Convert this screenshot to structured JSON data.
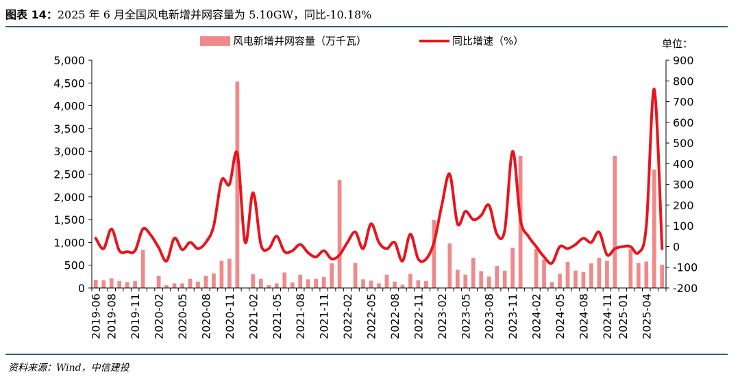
{
  "caption": {
    "label": "图表 14：",
    "text": "2025 年 6 月全国风电新增并网容量为 5.10GW，同比-10.18%"
  },
  "source": "资料来源：Wind，中信建投",
  "chart_data": {
    "type": "bar+line",
    "legend": {
      "position": "top-center"
    },
    "unit_label": "单位：",
    "left_axis": {
      "ylim": [
        0,
        5000
      ],
      "ticks": [
        0,
        500,
        1000,
        1500,
        2000,
        2500,
        3000,
        3500,
        4000,
        4500,
        5000
      ],
      "tick_labels": [
        "0",
        "500",
        "1,000",
        "1,500",
        "2,000",
        "2,500",
        "3,000",
        "3,500",
        "4,000",
        "4,500",
        "5,000"
      ]
    },
    "right_axis": {
      "ylim": [
        -200,
        900
      ],
      "ticks": [
        -200,
        -100,
        0,
        100,
        200,
        300,
        400,
        500,
        600,
        700,
        800,
        900
      ],
      "tick_labels": [
        "-200",
        "-100",
        "0",
        "100",
        "200",
        "300",
        "400",
        "500",
        "600",
        "700",
        "800",
        "900"
      ]
    },
    "x_tick_labels": [
      "2019-06",
      "2019-08",
      "2019-11",
      "2020-02",
      "2020-05",
      "2020-08",
      "2020-11",
      "2021-02",
      "2021-05",
      "2021-08",
      "2021-11",
      "2022-02",
      "2022-05",
      "2022-08",
      "2022-11",
      "2023-02",
      "2023-05",
      "2023-08",
      "2023-11",
      "2024-02",
      "2024-05",
      "2024-08",
      "2024-11",
      "2025-01",
      "2025-04"
    ],
    "x_tick_index": [
      0,
      2,
      5,
      8,
      11,
      14,
      17,
      20,
      23,
      26,
      29,
      32,
      35,
      38,
      41,
      44,
      47,
      50,
      53,
      56,
      59,
      62,
      65,
      67,
      70
    ],
    "categories": [
      "2019-06",
      "2019-07",
      "2019-08",
      "2019-09",
      "2019-10",
      "2019-11",
      "2019-12",
      "2020-01",
      "2020-02",
      "2020-03",
      "2020-04",
      "2020-05",
      "2020-06",
      "2020-07",
      "2020-08",
      "2020-09",
      "2020-10",
      "2020-11",
      "2020-12",
      "2021-01",
      "2021-02",
      "2021-03",
      "2021-04",
      "2021-05",
      "2021-06",
      "2021-07",
      "2021-08",
      "2021-09",
      "2021-10",
      "2021-11",
      "2021-12",
      "2022-01",
      "2022-02",
      "2022-03",
      "2022-04",
      "2022-05",
      "2022-06",
      "2022-07",
      "2022-08",
      "2022-09",
      "2022-10",
      "2022-11",
      "2022-12",
      "2023-01",
      "2023-02",
      "2023-03",
      "2023-04",
      "2023-05",
      "2023-06",
      "2023-07",
      "2023-08",
      "2023-09",
      "2023-10",
      "2023-11",
      "2023-12",
      "2024-01",
      "2024-02",
      "2024-03",
      "2024-04",
      "2024-05",
      "2024-06",
      "2024-07",
      "2024-08",
      "2024-09",
      "2024-10",
      "2024-11",
      "2024-12",
      "2025-01",
      "2025-02",
      "2025-03",
      "2025-04",
      "2025-05",
      "2025-06"
    ],
    "series": [
      {
        "name": "风电新增并网容量（万千瓦）",
        "kind": "bar",
        "axis": "left",
        "color": "#f08a8a",
        "values": [
          180,
          170,
          210,
          150,
          130,
          150,
          840,
          0,
          270,
          60,
          100,
          100,
          200,
          140,
          270,
          320,
          600,
          640,
          4530,
          0,
          300,
          200,
          60,
          100,
          340,
          120,
          290,
          190,
          200,
          240,
          540,
          2370,
          0,
          550,
          190,
          160,
          100,
          290,
          140,
          70,
          310,
          170,
          150,
          1490,
          0,
          980,
          400,
          290,
          660,
          370,
          250,
          480,
          380,
          880,
          2900,
          0,
          860,
          620,
          130,
          310,
          570,
          380,
          350,
          540,
          660,
          600,
          2900,
          0,
          860,
          550,
          580,
          2600,
          510
        ]
      },
      {
        "name": "同比增速（%）",
        "kind": "line",
        "axis": "right",
        "color": "#e8141c",
        "values": [
          40,
          -10,
          85,
          -20,
          -25,
          -20,
          85,
          55,
          -5,
          -70,
          40,
          -15,
          20,
          -10,
          20,
          100,
          320,
          300,
          450,
          20,
          260,
          10,
          -10,
          50,
          -25,
          -20,
          10,
          -30,
          -50,
          -20,
          -60,
          -40,
          20,
          70,
          -10,
          110,
          20,
          -10,
          20,
          -70,
          60,
          -60,
          -60,
          20,
          200,
          350,
          110,
          170,
          130,
          150,
          200,
          60,
          80,
          460,
          130,
          50,
          0,
          -50,
          -80,
          0,
          -10,
          10,
          40,
          20,
          70,
          -40,
          -10,
          0,
          0,
          -30,
          100,
          760,
          -10
        ]
      }
    ]
  }
}
